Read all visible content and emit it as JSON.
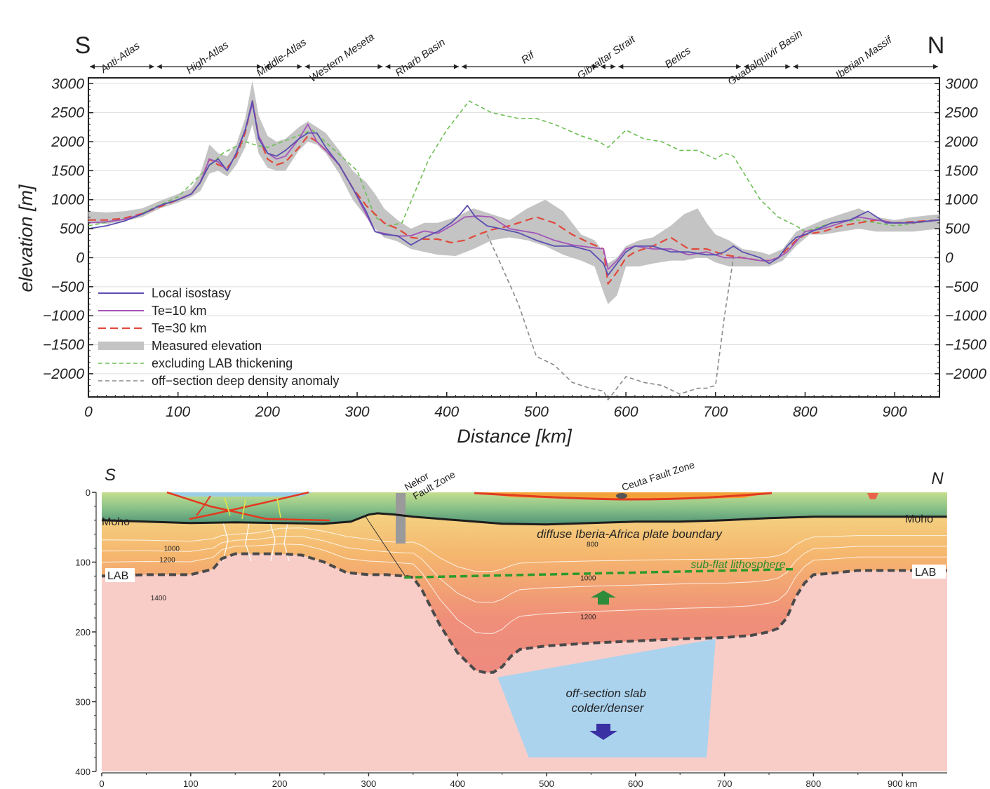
{
  "chart_data": [
    {
      "type": "line",
      "xlabel": "Distance [km]",
      "ylabel": "elevation [m]",
      "xlim": [
        0,
        950
      ],
      "ylim": [
        -2400,
        3100
      ],
      "x_ticks": [
        "0",
        "100",
        "200",
        "300",
        "400",
        "500",
        "600",
        "700",
        "800",
        "900"
      ],
      "y_ticks": [
        "3000",
        "2500",
        "2000",
        "1500",
        "1000",
        "500",
        "0",
        "−500",
        "−1000",
        "−1500",
        "−2000"
      ],
      "end_labels": {
        "left": "S",
        "right": "N"
      },
      "regions": [
        {
          "name": "Anti-Atlas",
          "start": 0,
          "end": 75
        },
        {
          "name": "High-Atlas",
          "start": 75,
          "end": 195
        },
        {
          "name": "Middle-Atlas",
          "start": 195,
          "end": 240
        },
        {
          "name": "Western Meseta",
          "start": 240,
          "end": 330
        },
        {
          "name": "Rharb Basin",
          "start": 330,
          "end": 415
        },
        {
          "name": "Rif",
          "start": 415,
          "end": 570
        },
        {
          "name": "Gibraltar Strait",
          "start": 570,
          "end": 590
        },
        {
          "name": "Betics",
          "start": 590,
          "end": 730
        },
        {
          "name": "Guadalquivir Basin",
          "start": 730,
          "end": 785
        },
        {
          "name": "Iberian Massif",
          "start": 785,
          "end": 950
        }
      ],
      "legend_position": "bottom-left",
      "grid": true,
      "series": [
        {
          "name": "Local isostasy",
          "color": "#5a4fb0",
          "style": "solid",
          "x": [
            0,
            20,
            40,
            60,
            80,
            100,
            115,
            125,
            135,
            145,
            155,
            165,
            175,
            183,
            190,
            200,
            210,
            220,
            235,
            245,
            255,
            265,
            280,
            295,
            310,
            320,
            330,
            345,
            360,
            375,
            390,
            405,
            415,
            423,
            432,
            445,
            460,
            480,
            500,
            520,
            540,
            560,
            575,
            580,
            590,
            600,
            610,
            630,
            650,
            670,
            690,
            700,
            710,
            720,
            730,
            740,
            750,
            760,
            770,
            780,
            790,
            800,
            815,
            830,
            850,
            870,
            890,
            910,
            930,
            950
          ],
          "y": [
            500,
            550,
            630,
            750,
            900,
            1000,
            1100,
            1300,
            1600,
            1700,
            1500,
            1800,
            2200,
            2700,
            2050,
            1800,
            1750,
            1850,
            2050,
            2150,
            2150,
            1900,
            1600,
            1200,
            800,
            450,
            400,
            380,
            220,
            350,
            450,
            600,
            750,
            900,
            700,
            550,
            500,
            430,
            300,
            200,
            200,
            120,
            -100,
            -300,
            -100,
            100,
            200,
            200,
            100,
            100,
            50,
            50,
            100,
            200,
            100,
            50,
            0,
            -100,
            0,
            200,
            350,
            400,
            500,
            600,
            650,
            800,
            600,
            600,
            620,
            650
          ]
        },
        {
          "name": "Te=10 km",
          "color": "#a355b9",
          "style": "solid",
          "x": [
            0,
            20,
            40,
            60,
            80,
            100,
            115,
            125,
            135,
            145,
            155,
            165,
            175,
            183,
            190,
            200,
            210,
            220,
            235,
            245,
            255,
            265,
            280,
            295,
            310,
            320,
            330,
            345,
            360,
            375,
            390,
            405,
            420,
            435,
            450,
            470,
            500,
            520,
            540,
            560,
            575,
            580,
            590,
            600,
            610,
            630,
            650,
            670,
            690,
            710,
            730,
            750,
            760,
            770,
            780,
            800,
            820,
            840,
            860,
            880,
            900,
            920,
            950
          ],
          "y": [
            600,
            620,
            660,
            750,
            900,
            1000,
            1100,
            1300,
            1700,
            1650,
            1500,
            1800,
            2200,
            2650,
            2100,
            1800,
            1700,
            1750,
            2050,
            2300,
            2000,
            1850,
            1600,
            1200,
            750,
            450,
            420,
            370,
            380,
            460,
            420,
            550,
            700,
            720,
            700,
            500,
            420,
            300,
            220,
            180,
            150,
            -200,
            -50,
            150,
            200,
            150,
            150,
            50,
            100,
            0,
            0,
            -50,
            -50,
            0,
            100,
            450,
            500,
            600,
            700,
            650,
            600,
            600,
            650
          ]
        },
        {
          "name": "Te=30 km",
          "color": "#e0493c",
          "style": "dashed",
          "x": [
            0,
            20,
            40,
            60,
            80,
            100,
            115,
            125,
            135,
            145,
            155,
            165,
            175,
            183,
            190,
            200,
            210,
            220,
            235,
            245,
            255,
            265,
            280,
            295,
            310,
            320,
            330,
            345,
            360,
            375,
            390,
            405,
            420,
            435,
            450,
            470,
            490,
            500,
            520,
            540,
            560,
            575,
            580,
            590,
            600,
            610,
            630,
            650,
            670,
            690,
            710,
            730,
            750,
            760,
            770,
            790,
            800,
            820,
            840,
            860,
            880,
            900,
            920,
            950
          ],
          "y": [
            650,
            650,
            680,
            760,
            880,
            1000,
            1100,
            1300,
            1700,
            1600,
            1550,
            1750,
            2150,
            2700,
            2100,
            1700,
            1600,
            1650,
            1900,
            2100,
            2000,
            1850,
            1600,
            1200,
            900,
            750,
            600,
            500,
            350,
            320,
            320,
            260,
            300,
            400,
            480,
            550,
            650,
            700,
            600,
            400,
            250,
            150,
            -450,
            -250,
            0,
            100,
            200,
            350,
            150,
            150,
            50,
            0,
            -50,
            -50,
            0,
            300,
            400,
            450,
            550,
            600,
            650,
            600,
            620,
            650
          ]
        },
        {
          "name": "Measured elevation",
          "color": "#c4c4c4",
          "style": "band",
          "x": [
            0,
            20,
            40,
            60,
            80,
            100,
            115,
            125,
            135,
            145,
            155,
            165,
            175,
            183,
            190,
            200,
            210,
            220,
            235,
            245,
            255,
            265,
            280,
            295,
            310,
            320,
            330,
            345,
            360,
            375,
            390,
            410,
            430,
            450,
            470,
            490,
            510,
            530,
            550,
            565,
            575,
            580,
            590,
            600,
            615,
            630,
            650,
            665,
            680,
            690,
            700,
            715,
            730,
            750,
            760,
            775,
            790,
            805,
            820,
            840,
            860,
            880,
            900,
            920,
            950
          ],
          "y_low": [
            600,
            580,
            630,
            700,
            850,
            950,
            1050,
            1150,
            1450,
            1500,
            1400,
            1600,
            1900,
            2300,
            1800,
            1550,
            1500,
            1500,
            1850,
            2000,
            1950,
            1800,
            1450,
            1000,
            700,
            500,
            350,
            280,
            150,
            100,
            50,
            30,
            150,
            300,
            350,
            300,
            200,
            50,
            -50,
            -150,
            -600,
            -800,
            -650,
            -150,
            -150,
            -100,
            -50,
            -50,
            0,
            0,
            -80,
            -150,
            -150,
            -150,
            -150,
            -50,
            200,
            400,
            400,
            450,
            500,
            450,
            450,
            450,
            500
          ],
          "y_high": [
            800,
            780,
            800,
            850,
            980,
            1100,
            1200,
            1450,
            1950,
            1800,
            1750,
            1950,
            2400,
            3050,
            2450,
            2100,
            2000,
            2050,
            2250,
            2350,
            2250,
            2150,
            1850,
            1500,
            1300,
            1100,
            850,
            650,
            500,
            600,
            600,
            700,
            850,
            750,
            650,
            850,
            1000,
            800,
            400,
            300,
            100,
            -100,
            0,
            200,
            300,
            350,
            550,
            750,
            850,
            600,
            400,
            300,
            150,
            100,
            50,
            150,
            450,
            550,
            650,
            750,
            850,
            700,
            650,
            700,
            750
          ]
        },
        {
          "name": "excluding LAB thickening",
          "color": "#6dbf55",
          "style": "dashed",
          "x": [
            0,
            50,
            100,
            150,
            175,
            185,
            200,
            250,
            300,
            320,
            335,
            350,
            380,
            400,
            425,
            450,
            480,
            500,
            520,
            550,
            570,
            580,
            590,
            600,
            620,
            640,
            660,
            680,
            700,
            710,
            720,
            750,
            770,
            790,
            800,
            830,
            860,
            900,
            950
          ],
          "y": [
            550,
            700,
            1050,
            1800,
            2000,
            1950,
            1900,
            2200,
            1500,
            700,
            550,
            600,
            1700,
            2200,
            2700,
            2500,
            2400,
            2400,
            2300,
            2100,
            2000,
            1900,
            2050,
            2200,
            2050,
            2000,
            1850,
            1850,
            1700,
            1800,
            1750,
            1000,
            700,
            550,
            450,
            600,
            650,
            550,
            650
          ]
        },
        {
          "name": "off−section deep density anomaly",
          "color": "#8a8a8a",
          "style": "dashed",
          "x": [
            445,
            460,
            480,
            500,
            520,
            540,
            560,
            575,
            580,
            590,
            600,
            620,
            640,
            660,
            680,
            690,
            700,
            710,
            720
          ],
          "y": [
            400,
            -100,
            -800,
            -1700,
            -1850,
            -2150,
            -2250,
            -2300,
            -2450,
            -2250,
            -2050,
            -2150,
            -2200,
            -2350,
            -2250,
            -2250,
            -2200,
            -1000,
            0
          ]
        }
      ]
    },
    {
      "type": "area",
      "xlabel": "",
      "ylabel": "",
      "xlim": [
        0,
        950
      ],
      "ylim": [
        0,
        400
      ],
      "x_ticks": [
        "0",
        "100",
        "200",
        "300",
        "400",
        "500",
        "600",
        "700",
        "800",
        "900 km"
      ],
      "y_ticks": [
        "0",
        "100",
        "200",
        "300",
        "400"
      ],
      "end_labels": {
        "left": "S",
        "right": "N"
      },
      "moho": {
        "x": [
          0,
          50,
          100,
          150,
          200,
          250,
          280,
          300,
          310,
          330,
          350,
          400,
          450,
          500,
          550,
          600,
          650,
          700,
          750,
          800,
          850,
          900,
          950
        ],
        "depth": [
          40,
          42,
          44,
          43,
          44,
          45,
          42,
          32,
          30,
          32,
          35,
          40,
          45,
          46,
          44,
          42,
          42,
          40,
          37,
          35,
          35,
          35,
          35
        ]
      },
      "lab": {
        "x": [
          0,
          50,
          100,
          125,
          135,
          150,
          175,
          200,
          225,
          250,
          275,
          300,
          320,
          340,
          350,
          360,
          380,
          400,
          420,
          430,
          440,
          450,
          460,
          470,
          500,
          550,
          600,
          650,
          700,
          730,
          750,
          760,
          770,
          780,
          790,
          800,
          820,
          850,
          900,
          950
        ],
        "depth": [
          120,
          118,
          118,
          110,
          95,
          88,
          88,
          88,
          90,
          100,
          115,
          118,
          118,
          120,
          122,
          140,
          190,
          230,
          255,
          258,
          258,
          250,
          235,
          225,
          220,
          216,
          213,
          210,
          208,
          205,
          200,
          195,
          180,
          150,
          130,
          118,
          116,
          112,
          112,
          112
        ]
      },
      "sub_flat_lithosphere": {
        "x": [
          340,
          780
        ],
        "depth": [
          122,
          110
        ]
      },
      "off_section_slab": {
        "x": [
          445,
          690,
          680,
          480
        ],
        "depth": [
          265,
          210,
          380,
          380
        ]
      },
      "isotherm_labels": [
        {
          "value": "1000",
          "x": 70,
          "depth": 84
        },
        {
          "value": "1200",
          "x": 65,
          "depth": 100
        },
        {
          "value": "1400",
          "x": 55,
          "depth": 155
        },
        {
          "value": "800",
          "x": 545,
          "depth": 78
        },
        {
          "value": "1000",
          "x": 538,
          "depth": 126
        },
        {
          "value": "1200",
          "x": 538,
          "depth": 182
        }
      ],
      "annotations": [
        "Moho",
        "Moho",
        "LAB",
        "LAB",
        "Nekor Fault Zone",
        "Ceuta Fault Zone",
        "diffuse Iberia-Africa plate boundary",
        "sub-flat lithosphere",
        "off-section slab colder/denser"
      ]
    }
  ]
}
